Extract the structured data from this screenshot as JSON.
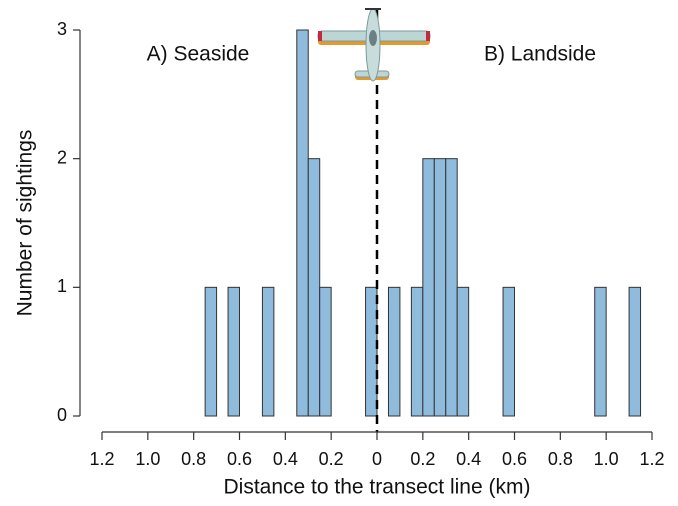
{
  "chart_data": {
    "type": "histogram",
    "x_label": "Distance to the transect line (km)",
    "y_label": "Number of sightings",
    "annotations": [
      "A) Seaside",
      "B) Landside"
    ],
    "bins": [
      -0.75,
      -0.7,
      -0.65,
      -0.6,
      -0.55,
      -0.5,
      -0.45,
      -0.4,
      -0.35,
      -0.3,
      -0.25,
      -0.2,
      -0.15,
      -0.1,
      -0.05,
      0,
      0.05,
      0.1,
      0.15,
      0.2,
      0.25,
      0.3,
      0.35,
      0.4,
      0.45,
      0.5,
      0.55,
      0.6,
      0.65,
      0.7,
      0.75,
      0.8,
      0.85,
      0.9,
      0.95,
      1,
      1.05,
      1.1,
      1.15
    ],
    "counts": [
      1,
      0,
      1,
      0,
      0,
      1,
      0,
      0,
      3,
      2,
      1,
      0,
      0,
      0,
      1,
      0,
      1,
      0,
      1,
      2,
      2,
      2,
      1,
      0,
      0,
      0,
      1,
      0,
      0,
      0,
      0,
      0,
      0,
      0,
      1,
      0,
      0,
      1
    ],
    "color": "#8fbbdd",
    "edge_color": "#333333",
    "reference_line": 0,
    "xlim": [
      -1.2,
      1.2
    ],
    "xticks": [
      {
        "value": -1.2,
        "label": "1.2"
      },
      {
        "value": -1,
        "label": "1.0"
      },
      {
        "value": -0.8,
        "label": "0.8"
      },
      {
        "value": -0.6,
        "label": "0.6"
      },
      {
        "value": -0.4,
        "label": "0.4"
      },
      {
        "value": -0.2,
        "label": "0.2"
      },
      0,
      0.2,
      0.4,
      0.6,
      0.8,
      {
        "value": 1,
        "label": "1.0"
      },
      1.2
    ],
    "ylim": [
      0,
      3
    ],
    "yticks": [
      0,
      1,
      2,
      3
    ]
  }
}
